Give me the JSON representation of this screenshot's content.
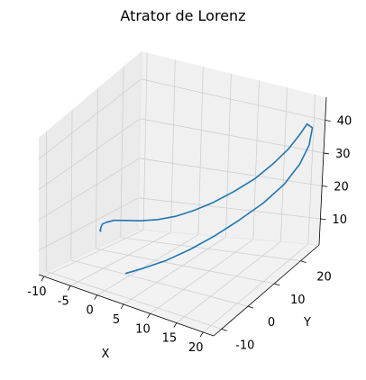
{
  "chart_data": {
    "type": "line",
    "projection": "3d",
    "title": "Atrator de Lorenz",
    "xlabel": "X",
    "ylabel": "Y",
    "zlabel": "",
    "xlim": [
      -11,
      22
    ],
    "ylim": [
      -13,
      27
    ],
    "zlim": [
      2,
      47
    ],
    "xticks": [
      -10,
      -5,
      0,
      5,
      10,
      15,
      20
    ],
    "yticks": [
      -10,
      0,
      10,
      20
    ],
    "zticks": [
      10,
      20,
      30,
      40
    ],
    "grid": true,
    "series": [
      {
        "color": "#1f77b4",
        "x": [
          -1.0,
          -1.5,
          -2.5,
          -3.2,
          -3.8,
          -4.0,
          -3.5,
          -2.2,
          0.0,
          2.5,
          5.0,
          7.5,
          10.0,
          12.5,
          15.0,
          17.0,
          18.5,
          19.5,
          20.0,
          20.5,
          20.3,
          19.5,
          18.0,
          16.0,
          13.5,
          11.0,
          8.5,
          6.0,
          3.5,
          1.5
        ],
        "y": [
          -10.0,
          -8.5,
          -6.5,
          -4.8,
          -3.0,
          -1.0,
          1.0,
          2.6,
          4.0,
          5.5,
          7.0,
          9.0,
          11.0,
          13.5,
          16.0,
          18.5,
          21.0,
          23.0,
          24.5,
          25.5,
          25.0,
          23.5,
          21.0,
          17.5,
          13.5,
          9.5,
          5.5,
          1.5,
          -2.0,
          -5.0
        ],
        "z": [
          20.0,
          18.5,
          17.5,
          17.2,
          17.0,
          16.5,
          16.3,
          16.0,
          16.0,
          16.5,
          17.5,
          19.0,
          21.0,
          23.5,
          26.5,
          30.0,
          33.5,
          37.0,
          39.5,
          38.0,
          33.0,
          28.0,
          23.0,
          19.0,
          15.5,
          12.5,
          10.0,
          8.0,
          6.5,
          5.5
        ]
      }
    ]
  }
}
